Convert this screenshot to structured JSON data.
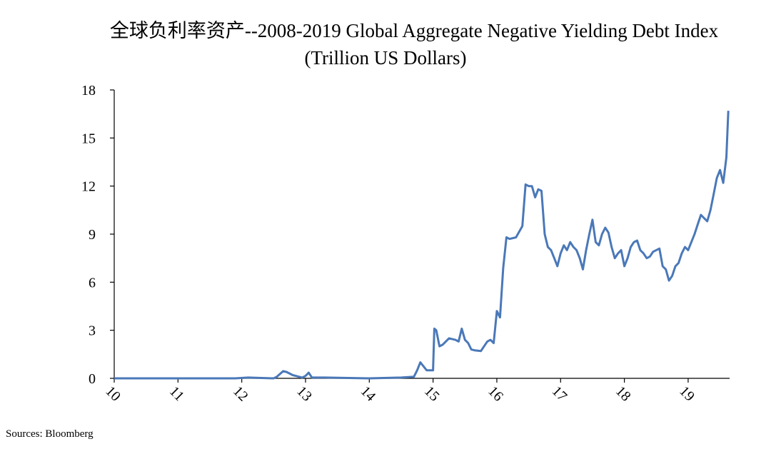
{
  "title_line1": "全球负利率资产--2008-2019 Global Aggregate Negative Yielding Debt Index",
  "title_line2": "(Trillion US Dollars)",
  "source": "Sources: Bloomberg",
  "colors": {
    "line": "#4a78b8",
    "axis": "#000000"
  },
  "chart_data": {
    "type": "line",
    "title": "全球负利率资产--2008-2019 Global Aggregate Negative Yielding Debt Index (Trillion US Dollars)",
    "xlabel": "",
    "ylabel": "",
    "xlim": [
      10,
      19.65
    ],
    "ylim": [
      0,
      18
    ],
    "x_ticks": [
      10,
      11,
      12,
      13,
      14,
      15,
      16,
      17,
      18,
      19
    ],
    "x_tick_labels": [
      "10",
      "11",
      "12",
      "13",
      "14",
      "15",
      "16",
      "17",
      "18",
      "19"
    ],
    "y_ticks": [
      0,
      3,
      6,
      9,
      12,
      15,
      18
    ],
    "y_tick_labels": [
      "0",
      "3",
      "6",
      "9",
      "12",
      "15",
      "18"
    ],
    "series": [
      {
        "name": "Global Aggregate Negative Yielding Debt Index",
        "x": [
          10.0,
          11.9,
          12.1,
          12.5,
          12.55,
          12.65,
          12.7,
          12.8,
          12.9,
          12.95,
          13.0,
          13.05,
          13.1,
          13.3,
          14.0,
          14.5,
          14.7,
          14.75,
          14.8,
          14.9,
          15.0,
          15.02,
          15.05,
          15.1,
          15.15,
          15.25,
          15.35,
          15.4,
          15.45,
          15.5,
          15.55,
          15.6,
          15.65,
          15.75,
          15.8,
          15.85,
          15.9,
          15.95,
          16.0,
          16.05,
          16.1,
          16.15,
          16.2,
          16.3,
          16.4,
          16.45,
          16.5,
          16.55,
          16.6,
          16.65,
          16.7,
          16.75,
          16.8,
          16.85,
          16.9,
          16.95,
          17.0,
          17.05,
          17.1,
          17.15,
          17.2,
          17.25,
          17.3,
          17.35,
          17.4,
          17.45,
          17.5,
          17.55,
          17.6,
          17.65,
          17.7,
          17.75,
          17.8,
          17.85,
          17.9,
          17.95,
          18.0,
          18.05,
          18.1,
          18.15,
          18.2,
          18.25,
          18.3,
          18.35,
          18.4,
          18.45,
          18.5,
          18.55,
          18.6,
          18.65,
          18.7,
          18.75,
          18.8,
          18.85,
          18.9,
          18.95,
          19.0,
          19.05,
          19.1,
          19.15,
          19.2,
          19.25,
          19.3,
          19.35,
          19.4,
          19.45,
          19.5,
          19.55,
          19.6,
          19.63
        ],
        "values": [
          0.0,
          0.0,
          0.05,
          0.0,
          0.1,
          0.45,
          0.4,
          0.2,
          0.1,
          0.05,
          0.15,
          0.35,
          0.05,
          0.05,
          0.0,
          0.05,
          0.1,
          0.5,
          1.0,
          0.5,
          0.5,
          3.1,
          3.0,
          2.0,
          2.1,
          2.5,
          2.4,
          2.3,
          3.1,
          2.4,
          2.2,
          1.8,
          1.75,
          1.7,
          2.0,
          2.3,
          2.4,
          2.2,
          4.2,
          3.8,
          6.9,
          8.8,
          8.7,
          8.8,
          9.5,
          12.1,
          12.0,
          12.0,
          11.3,
          11.8,
          11.7,
          9.0,
          8.2,
          8.0,
          7.5,
          7.0,
          7.8,
          8.3,
          8.0,
          8.5,
          8.2,
          8.0,
          7.5,
          6.8,
          8.0,
          9.0,
          9.9,
          8.5,
          8.3,
          9.0,
          9.4,
          9.1,
          8.2,
          7.5,
          7.8,
          8.0,
          7.0,
          7.5,
          8.2,
          8.5,
          8.6,
          8.0,
          7.8,
          7.5,
          7.6,
          7.9,
          8.0,
          8.1,
          7.0,
          6.8,
          6.1,
          6.4,
          7.0,
          7.2,
          7.8,
          8.2,
          8.0,
          8.5,
          9.0,
          9.6,
          10.2,
          10.0,
          9.8,
          10.5,
          11.5,
          12.5,
          13.0,
          12.2,
          13.8,
          16.7
        ]
      }
    ]
  }
}
